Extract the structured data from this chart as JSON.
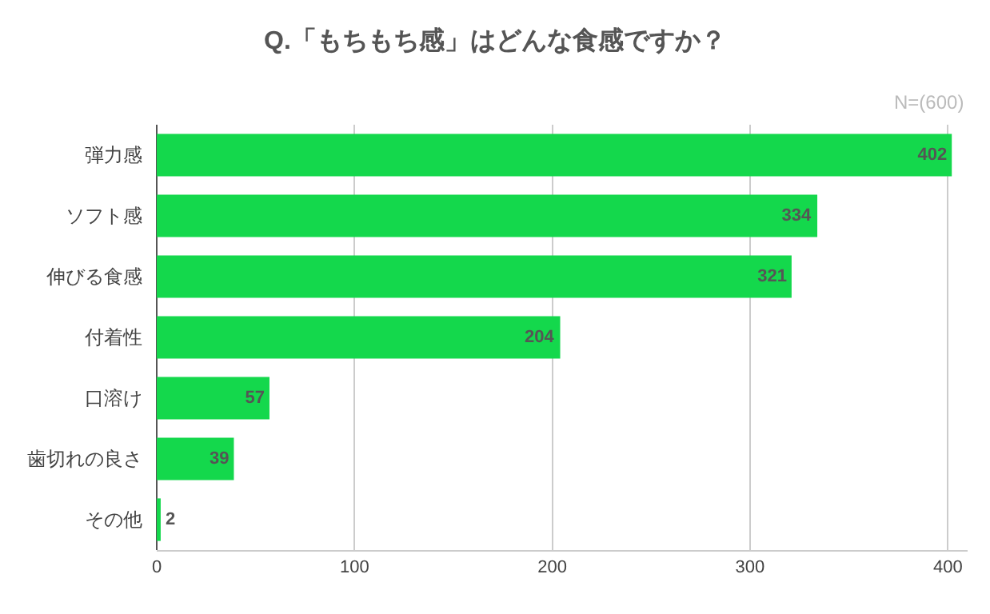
{
  "chart_data": {
    "type": "bar",
    "orientation": "horizontal",
    "title": "Q.「もちもち感」はどんな食感ですか？",
    "annotations": [
      "N=(600)"
    ],
    "categories": [
      "弾力感",
      "ソフト感",
      "伸びる食感",
      "付着性",
      "口溶け",
      "歯切れの良さ",
      "その他"
    ],
    "values": [
      402,
      334,
      321,
      204,
      57,
      39,
      2
    ],
    "color": "#14d84c",
    "xlim": [
      0,
      410
    ],
    "xticks": [
      0,
      100,
      200,
      300,
      400
    ],
    "grid": "x",
    "data_labels": true
  }
}
